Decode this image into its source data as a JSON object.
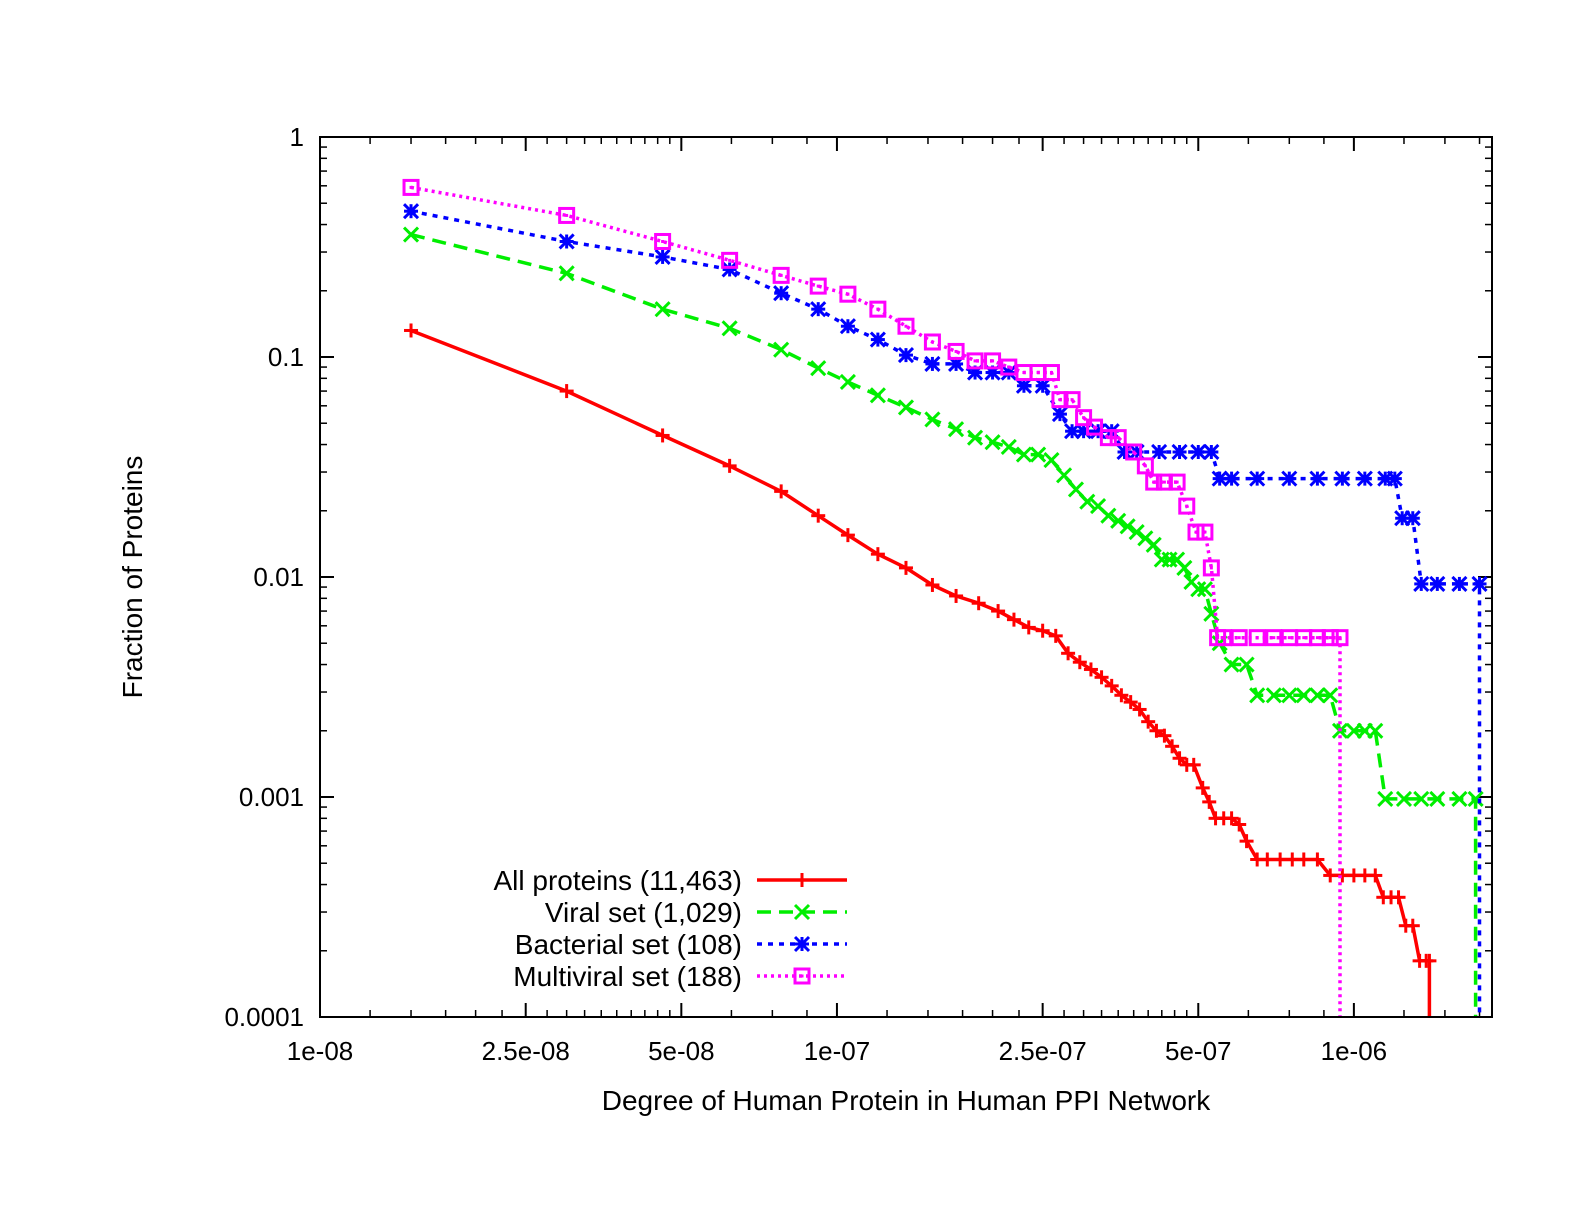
{
  "chart_data": {
    "type": "line",
    "xlabel": "Degree of Human Protein in Human PPI Network",
    "ylabel": "Fraction of Proteins",
    "x_scale": "log",
    "y_scale": "log",
    "xlim": [
      1e-08,
      1.85e-06
    ],
    "ylim": [
      0.0001,
      1
    ],
    "x_ticks": [
      {
        "value": 1e-08,
        "label": "1e-08"
      },
      {
        "value": 2.5e-08,
        "label": "2.5e-08"
      },
      {
        "value": 5e-08,
        "label": "5e-08"
      },
      {
        "value": 1e-07,
        "label": "1e-07"
      },
      {
        "value": 2.5e-07,
        "label": "2.5e-07"
      },
      {
        "value": 5e-07,
        "label": "5e-07"
      },
      {
        "value": 1e-06,
        "label": "1e-06"
      }
    ],
    "y_ticks": [
      {
        "value": 1,
        "label": "1"
      },
      {
        "value": 0.1,
        "label": "0.1"
      },
      {
        "value": 0.01,
        "label": "0.01"
      },
      {
        "value": 0.001,
        "label": "0.001"
      },
      {
        "value": 0.0001,
        "label": "0.0001"
      }
    ],
    "grid": false,
    "legend_position": "bottom-left",
    "series": [
      {
        "name": "All proteins (11,463)",
        "color": "#ff0000",
        "dash": "solid",
        "marker": "plus",
        "x": [
          1.5e-08,
          3e-08,
          4.6e-08,
          6.2e-08,
          7.8e-08,
          9.2e-08,
          1.05e-07,
          1.2e-07,
          1.36e-07,
          1.53e-07,
          1.7e-07,
          1.88e-07,
          2.05e-07,
          2.2e-07,
          2.35e-07,
          2.5e-07,
          2.65e-07,
          2.8e-07,
          2.95e-07,
          3.1e-07,
          3.25e-07,
          3.4e-07,
          3.55e-07,
          3.7e-07,
          3.85e-07,
          4e-07,
          4.15e-07,
          4.3e-07,
          4.45e-07,
          4.6e-07,
          4.75e-07,
          4.9e-07,
          5.1e-07,
          5.25e-07,
          5.4e-07,
          5.6e-07,
          5.8e-07,
          6e-07,
          6.2e-07,
          6.5e-07,
          6.8e-07,
          7.2e-07,
          7.6e-07,
          8e-07,
          8.5e-07,
          9e-07,
          9.5e-07,
          1e-06,
          1.05e-06,
          1.1e-06,
          1.14e-06,
          1.18e-06,
          1.22e-06,
          1.26e-06,
          1.3e-06,
          1.34e-06,
          1.38e-06,
          1.4e-06,
          1.4e-06
        ],
        "y": [
          0.132,
          0.07,
          0.044,
          0.032,
          0.0245,
          0.019,
          0.0155,
          0.0127,
          0.011,
          0.0092,
          0.0082,
          0.0076,
          0.007,
          0.0064,
          0.0059,
          0.0057,
          0.0054,
          0.0045,
          0.0041,
          0.0038,
          0.0035,
          0.0032,
          0.0029,
          0.0027,
          0.0025,
          0.0022,
          0.002,
          0.0019,
          0.0017,
          0.0015,
          0.0014,
          0.0014,
          0.0011,
          0.00095,
          0.0008,
          0.0008,
          0.0008,
          0.00075,
          0.00063,
          0.00052,
          0.00052,
          0.00052,
          0.00052,
          0.00052,
          0.00052,
          0.00044,
          0.00044,
          0.00044,
          0.00044,
          0.00044,
          0.00035,
          0.00035,
          0.00035,
          0.00026,
          0.00026,
          0.00018,
          0.00018,
          0.00018,
          0.0001
        ]
      },
      {
        "name": "Viral set (1,029)",
        "color": "#00ee00",
        "dash": "dashed",
        "marker": "x",
        "x": [
          1.5e-08,
          3e-08,
          4.6e-08,
          6.2e-08,
          7.8e-08,
          9.2e-08,
          1.05e-07,
          1.2e-07,
          1.36e-07,
          1.53e-07,
          1.7e-07,
          1.85e-07,
          2e-07,
          2.15e-07,
          2.3e-07,
          2.45e-07,
          2.6e-07,
          2.75e-07,
          2.9e-07,
          3.05e-07,
          3.2e-07,
          3.35e-07,
          3.5e-07,
          3.65e-07,
          3.8e-07,
          3.95e-07,
          4.1e-07,
          4.25e-07,
          4.4e-07,
          4.55e-07,
          4.7e-07,
          4.85e-07,
          5e-07,
          5.15e-07,
          5.3e-07,
          5.5e-07,
          5.8e-07,
          6.2e-07,
          6.5e-07,
          7e-07,
          7.5e-07,
          8e-07,
          8.5e-07,
          9e-07,
          9.4e-07,
          1e-06,
          1.05e-06,
          1.1e-06,
          1.15e-06,
          1.25e-06,
          1.35e-06,
          1.45e-06,
          1.6e-06,
          1.72e-06,
          1.72e-06
        ],
        "y": [
          0.36,
          0.24,
          0.165,
          0.135,
          0.108,
          0.089,
          0.077,
          0.067,
          0.059,
          0.052,
          0.047,
          0.043,
          0.041,
          0.039,
          0.036,
          0.036,
          0.034,
          0.029,
          0.025,
          0.022,
          0.021,
          0.019,
          0.018,
          0.017,
          0.016,
          0.015,
          0.014,
          0.012,
          0.012,
          0.012,
          0.011,
          0.0095,
          0.0088,
          0.0088,
          0.0068,
          0.005,
          0.004,
          0.004,
          0.0029,
          0.0029,
          0.0029,
          0.0029,
          0.0029,
          0.0029,
          0.002,
          0.002,
          0.002,
          0.002,
          0.00098,
          0.00098,
          0.00098,
          0.00098,
          0.00098,
          0.00098,
          0.0001
        ]
      },
      {
        "name": "Bacterial set (108)",
        "color": "#0000ff",
        "dash": "dotted",
        "marker": "star",
        "x": [
          1.5e-08,
          3e-08,
          4.6e-08,
          6.2e-08,
          7.8e-08,
          9.2e-08,
          1.05e-07,
          1.2e-07,
          1.36e-07,
          1.53e-07,
          1.7e-07,
          1.85e-07,
          2e-07,
          2.15e-07,
          2.3e-07,
          2.5e-07,
          2.7e-07,
          2.85e-07,
          3e-07,
          3.2e-07,
          3.4e-07,
          3.6e-07,
          3.8e-07,
          4.2e-07,
          4.6e-07,
          5e-07,
          5.3e-07,
          5.5e-07,
          5.8e-07,
          6.5e-07,
          7.5e-07,
          8.5e-07,
          9.5e-07,
          1.05e-06,
          1.15e-06,
          1.2e-06,
          1.24e-06,
          1.3e-06,
          1.35e-06,
          1.45e-06,
          1.6e-06,
          1.75e-06,
          1.75e-06
        ],
        "y": [
          0.46,
          0.335,
          0.285,
          0.25,
          0.195,
          0.165,
          0.138,
          0.12,
          0.102,
          0.093,
          0.093,
          0.085,
          0.085,
          0.085,
          0.074,
          0.074,
          0.055,
          0.046,
          0.046,
          0.046,
          0.046,
          0.037,
          0.037,
          0.037,
          0.037,
          0.037,
          0.037,
          0.028,
          0.028,
          0.028,
          0.028,
          0.028,
          0.028,
          0.028,
          0.028,
          0.028,
          0.0185,
          0.0185,
          0.0093,
          0.0093,
          0.0093,
          0.0093,
          0.0001
        ]
      },
      {
        "name": "Multiviral set (188)",
        "color": "#ff00ff",
        "dash": "dotted-fine",
        "marker": "square",
        "x": [
          1.5e-08,
          3e-08,
          4.6e-08,
          6.2e-08,
          7.8e-08,
          9.2e-08,
          1.05e-07,
          1.2e-07,
          1.36e-07,
          1.53e-07,
          1.7e-07,
          1.85e-07,
          2e-07,
          2.15e-07,
          2.3e-07,
          2.45e-07,
          2.6e-07,
          2.7e-07,
          2.85e-07,
          3e-07,
          3.15e-07,
          3.35e-07,
          3.5e-07,
          3.75e-07,
          3.95e-07,
          4.1e-07,
          4.3e-07,
          4.55e-07,
          4.75e-07,
          4.95e-07,
          5.15e-07,
          5.3e-07,
          5.45e-07,
          5.6e-07,
          6e-07,
          6.5e-07,
          7e-07,
          7.5e-07,
          8e-07,
          8.5e-07,
          9e-07,
          9.4e-07,
          9.4e-07
        ],
        "y": [
          0.59,
          0.44,
          0.335,
          0.275,
          0.235,
          0.21,
          0.193,
          0.165,
          0.138,
          0.117,
          0.106,
          0.096,
          0.096,
          0.09,
          0.085,
          0.085,
          0.085,
          0.064,
          0.064,
          0.053,
          0.048,
          0.043,
          0.043,
          0.037,
          0.032,
          0.027,
          0.027,
          0.027,
          0.021,
          0.016,
          0.016,
          0.011,
          0.0053,
          0.0053,
          0.0053,
          0.0053,
          0.0053,
          0.0053,
          0.0053,
          0.0053,
          0.0053,
          0.0053,
          0.0001
        ]
      }
    ]
  }
}
